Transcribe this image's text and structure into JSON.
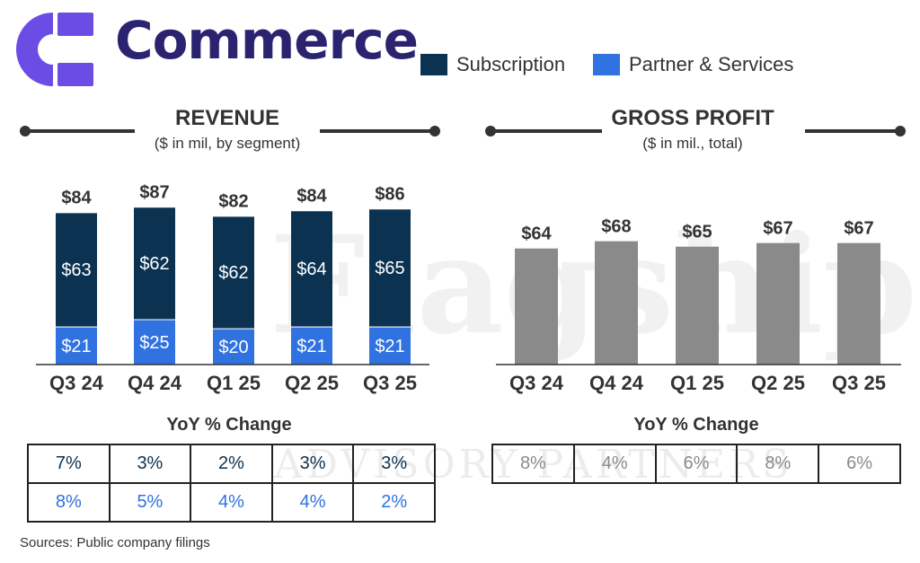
{
  "header": {
    "title": "Commerce",
    "logo_color": "#6b4de6"
  },
  "legend": {
    "items": [
      {
        "label": "Subscription",
        "color": "#0b3251"
      },
      {
        "label": "Partner & Services",
        "color": "#2f72e0"
      }
    ]
  },
  "revenue_panel": {
    "title": "REVENUE",
    "subtitle": "($ in mil, by segment)",
    "yoy_title": "YoY % Change",
    "yoy_rows": [
      {
        "color": "#0b3251",
        "values": [
          "7%",
          "3%",
          "2%",
          "3%",
          "3%"
        ]
      },
      {
        "color": "#2f72e0",
        "values": [
          "8%",
          "5%",
          "4%",
          "4%",
          "2%"
        ]
      }
    ]
  },
  "gross_profit_panel": {
    "title": "GROSS PROFIT",
    "subtitle": "($ in mil., total)",
    "yoy_title": "YoY % Change",
    "yoy_rows": [
      {
        "color": "#8a8a8a",
        "values": [
          "8%",
          "4%",
          "6%",
          "8%",
          "6%"
        ]
      }
    ]
  },
  "sources": "Sources: Public company filings",
  "watermark": {
    "word": "Flagship",
    "subline": "ADVISORY PARTNERS"
  },
  "chart_data": [
    {
      "type": "bar",
      "stacked": true,
      "title": "REVENUE",
      "subtitle": "($ in mil, by segment)",
      "categories": [
        "Q3 24",
        "Q4 24",
        "Q1 25",
        "Q2 25",
        "Q3 25"
      ],
      "series": [
        {
          "name": "Subscription",
          "color": "#0b3251",
          "values": [
            63,
            62,
            62,
            64,
            65
          ],
          "labels": [
            "$63",
            "$62",
            "$62",
            "$64",
            "$65"
          ]
        },
        {
          "name": "Partner & Services",
          "color": "#2f72e0",
          "values": [
            21,
            25,
            20,
            21,
            21
          ],
          "labels": [
            "$21",
            "$25",
            "$20",
            "$21",
            "$21"
          ]
        }
      ],
      "totals": [
        "$84",
        "$87",
        "$82",
        "$84",
        "$86"
      ],
      "ylim": [
        0,
        90
      ],
      "grid": false,
      "legend": "top-right"
    },
    {
      "type": "bar",
      "title": "GROSS PROFIT",
      "subtitle": "($ in mil., total)",
      "categories": [
        "Q3 24",
        "Q4 24",
        "Q1 25",
        "Q2 25",
        "Q3 25"
      ],
      "series": [
        {
          "color": "#8a8a8a",
          "values": [
            64,
            68,
            65,
            67,
            67
          ],
          "labels": [
            "$64",
            "$68",
            "$65",
            "$67",
            "$67"
          ]
        }
      ],
      "ylim": [
        0,
        90
      ],
      "grid": false
    }
  ]
}
